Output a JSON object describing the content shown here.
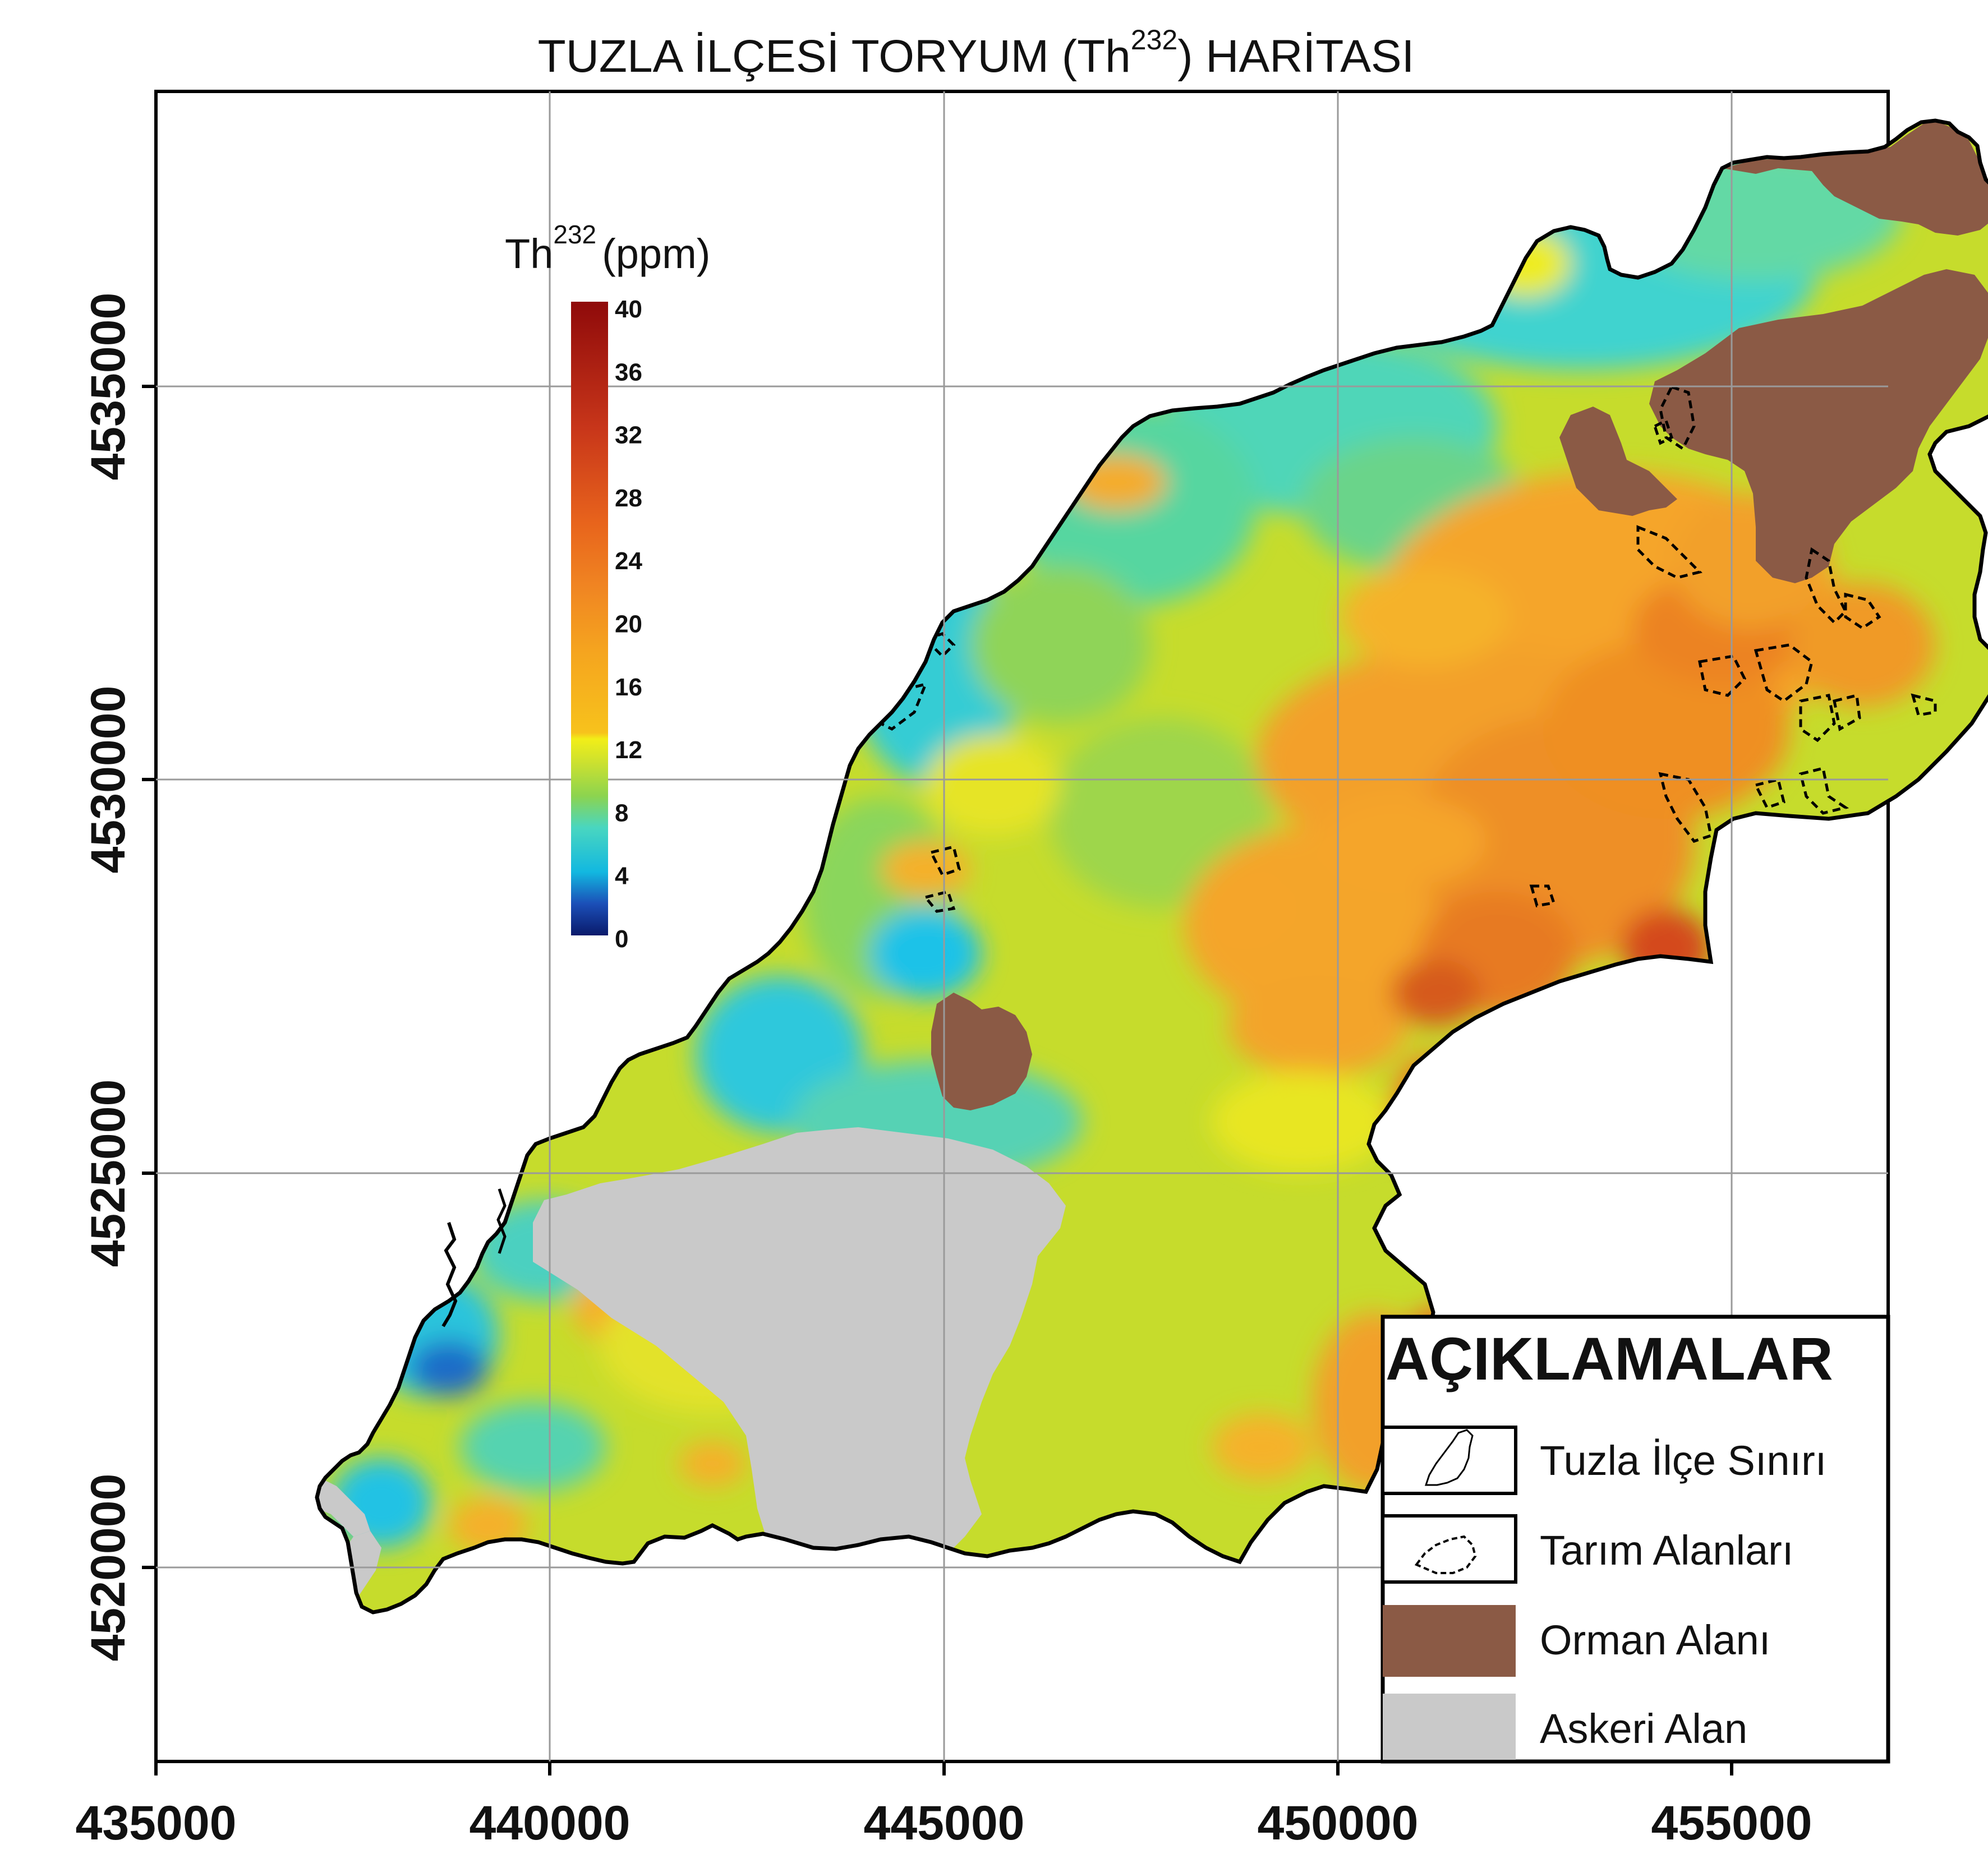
{
  "title": {
    "main_before": "TUZLA İLÇESİ TORYUM (Th",
    "superscript": "232",
    "main_after": ") HARİTASI"
  },
  "axes": {
    "x_ticks": [
      "435000",
      "440000",
      "445000",
      "450000",
      "455000"
    ],
    "y_ticks": [
      "4520000",
      "4525000",
      "4530000",
      "4535000"
    ]
  },
  "colorbar": {
    "label_base": "Th",
    "label_sup": "232",
    "label_unit": "(ppm)",
    "ticks": [
      "40",
      "36",
      "32",
      "28",
      "24",
      "20",
      "16",
      "12",
      "8",
      "4",
      "0"
    ]
  },
  "legend": {
    "title": "AÇIKLAMALAR",
    "items": [
      {
        "label": "Tuzla İlçe Sınırı",
        "swatch": "district-boundary"
      },
      {
        "label": "Tarım Alanları",
        "swatch": "agricultural-area"
      },
      {
        "label": "Orman Alanı",
        "swatch": "forest-area"
      },
      {
        "label": "Askeri Alan",
        "swatch": "military-area"
      }
    ]
  },
  "colors": {
    "forest": "#8b5a45",
    "military": "#c9c9c9",
    "boundary": "#000000",
    "grid": "#9a9a9a"
  }
}
